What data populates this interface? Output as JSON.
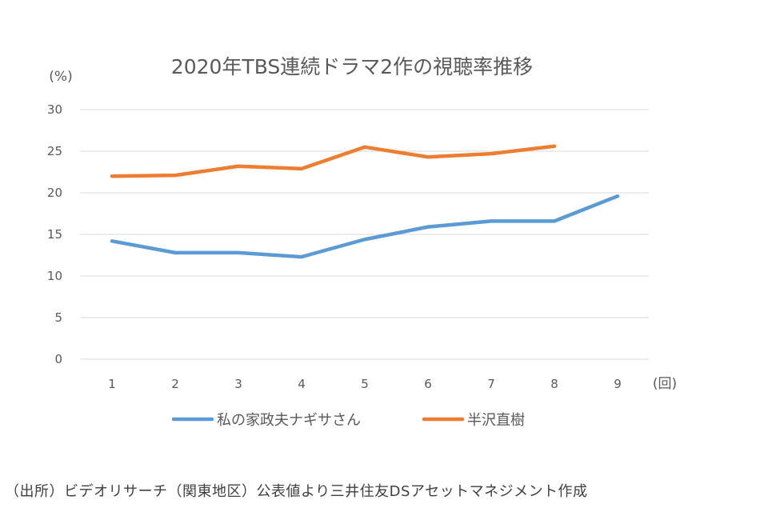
{
  "chart_data": {
    "type": "line",
    "title": "2020年TBS連続ドラマ2作の視聴率推移",
    "ylabel": "(%)",
    "xlabel": "(回)",
    "categories": [
      "1",
      "2",
      "3",
      "4",
      "5",
      "6",
      "7",
      "8",
      "9"
    ],
    "yticks": [
      "0",
      "5",
      "10",
      "15",
      "20",
      "25",
      "30"
    ],
    "ylim": [
      0,
      30
    ],
    "grid": true,
    "legend_position": "bottom",
    "series": [
      {
        "name": "私の家政夫ナギサさん",
        "color": "#5b9bd5",
        "values": [
          14.2,
          12.8,
          12.8,
          12.3,
          14.4,
          15.9,
          16.6,
          16.6,
          19.6
        ]
      },
      {
        "name": "半沢直樹",
        "color": "#ed7d31",
        "values": [
          22.0,
          22.1,
          23.2,
          22.9,
          25.5,
          24.3,
          24.7,
          25.6,
          null
        ]
      }
    ]
  },
  "source_note": "（出所）ビデオリサーチ（関東地区）公表値より三井住友DSアセットマネジメント作成"
}
